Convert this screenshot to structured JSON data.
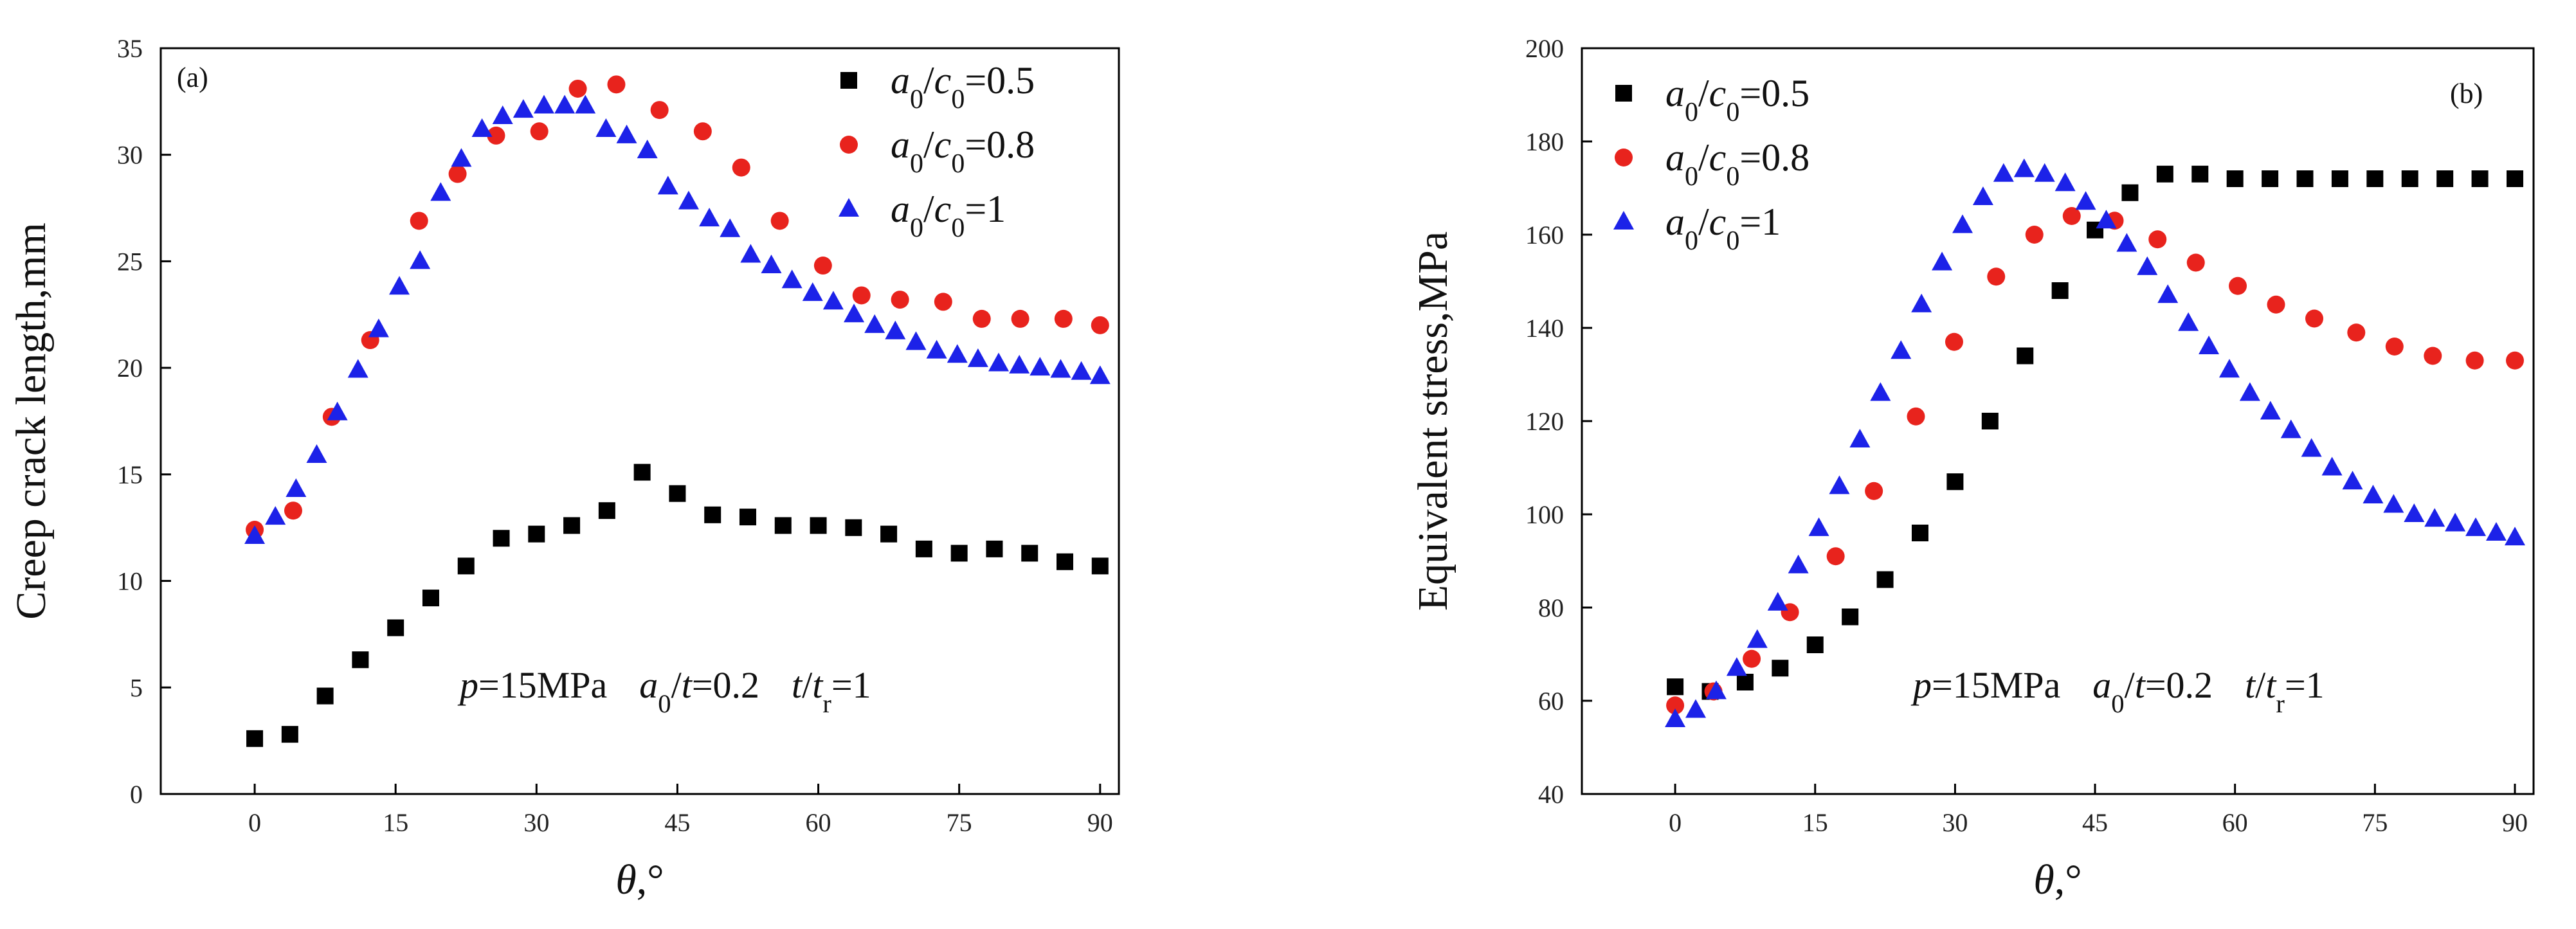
{
  "chart_data": [
    {
      "type": "scatter",
      "panel_label": "(a)",
      "xlabel_symbol": "θ",
      "xlabel_unit": ",°",
      "ylabel": "Creep crack length,mm",
      "xlim": [
        -10,
        92
      ],
      "ylim": [
        0,
        35
      ],
      "xticks": [
        "0",
        "15",
        "30",
        "45",
        "60",
        "75",
        "90"
      ],
      "yticks": [
        "0",
        "5",
        "10",
        "15",
        "20",
        "25",
        "30",
        "35"
      ],
      "legend_position": "top-right",
      "annotation": {
        "p": "p",
        "p_rest": "=15MPa",
        "a": "a",
        "a_sub": "0",
        "a_rest": "/",
        "t1": "t",
        "t1_rest": "=0.2",
        "t2": "t",
        "t2_mid": "/",
        "t3": "t",
        "t3_sub": "r",
        "t3_rest": "=1"
      },
      "series": [
        {
          "name": "a0/c0=0.5",
          "label": {
            "a": "a",
            "sub1": "0",
            "slash": "/",
            "c": "c",
            "sub2": "0",
            "val": "=0.5"
          },
          "marker": "square",
          "color": "#000000",
          "x": [
            0,
            3.75,
            7.5,
            11.25,
            15,
            18.75,
            22.5,
            26.25,
            30,
            33.75,
            37.5,
            41.25,
            45,
            48.75,
            52.5,
            56.25,
            60,
            63.75,
            67.5,
            71.25,
            75,
            78.75,
            82.5,
            86.25,
            90
          ],
          "y": [
            2.6,
            2.8,
            4.6,
            6.3,
            7.8,
            9.2,
            10.7,
            12.0,
            12.2,
            12.6,
            13.3,
            15.1,
            14.1,
            13.1,
            13.0,
            12.6,
            12.6,
            12.5,
            12.2,
            11.5,
            11.3,
            11.5,
            11.3,
            10.9,
            10.7
          ]
        },
        {
          "name": "a0/c0=0.8",
          "label": {
            "a": "a",
            "sub1": "0",
            "slash": "/",
            "c": "c",
            "sub2": "0",
            "val": "=0.8"
          },
          "marker": "circle",
          "color": "#e8231d",
          "x": [
            0,
            4.1,
            8.2,
            12.3,
            17.5,
            21.6,
            25.7,
            30.3,
            34.4,
            38.5,
            43.1,
            47.7,
            51.8,
            55.9,
            60.5,
            64.6,
            68.7,
            73.3,
            77.4,
            81.5,
            86.1,
            90
          ],
          "y": [
            12.4,
            13.3,
            17.7,
            21.3,
            26.9,
            29.1,
            30.9,
            31.1,
            33.1,
            33.3,
            32.1,
            31.1,
            29.4,
            26.9,
            24.8,
            23.4,
            23.2,
            23.1,
            22.3,
            22.3,
            22.3,
            22.0
          ]
        },
        {
          "name": "a0/c0=1",
          "label": {
            "a": "a",
            "sub1": "0",
            "slash": "/",
            "c": "c",
            "sub2": "0",
            "val": "=1"
          },
          "marker": "triangle",
          "color": "#1c22e8",
          "x": [
            0,
            2.2,
            4.4,
            6.6,
            8.8,
            11,
            13.2,
            15.4,
            17.6,
            19.8,
            22,
            24.2,
            26.4,
            28.6,
            30.8,
            33,
            35.2,
            37.4,
            39.6,
            41.8,
            44,
            46.2,
            48.4,
            50.6,
            52.8,
            55,
            57.2,
            59.4,
            61.6,
            63.8,
            66,
            68.2,
            70.4,
            72.6,
            74.8,
            77,
            79.2,
            81.4,
            83.6,
            85.8,
            88,
            90
          ],
          "y": [
            12.1,
            13.0,
            14.3,
            15.9,
            17.9,
            19.9,
            21.8,
            23.8,
            25.0,
            28.2,
            29.8,
            31.2,
            31.8,
            32.1,
            32.3,
            32.3,
            32.3,
            31.2,
            30.9,
            30.2,
            28.5,
            27.8,
            27.0,
            26.5,
            25.3,
            24.8,
            24.1,
            23.5,
            23.1,
            22.5,
            22.0,
            21.7,
            21.2,
            20.8,
            20.6,
            20.4,
            20.2,
            20.1,
            20.0,
            19.9,
            19.8,
            19.6
          ]
        }
      ]
    },
    {
      "type": "scatter",
      "panel_label": "(b)",
      "xlabel_symbol": "θ",
      "xlabel_unit": ",°",
      "ylabel": "Equivalent  stress,MPa",
      "xlim": [
        -10,
        92
      ],
      "ylim": [
        40,
        200
      ],
      "xticks": [
        "0",
        "15",
        "30",
        "45",
        "60",
        "75",
        "90"
      ],
      "yticks": [
        "40",
        "60",
        "80",
        "100",
        "120",
        "140",
        "160",
        "180",
        "200"
      ],
      "legend_position": "top-left",
      "annotation": {
        "p": "p",
        "p_rest": "=15MPa",
        "a": "a",
        "a_sub": "0",
        "a_rest": "/",
        "t1": "t",
        "t1_rest": "=0.2",
        "t2": "t",
        "t2_mid": "/",
        "t3": "t",
        "t3_sub": "r",
        "t3_rest": "=1"
      },
      "series": [
        {
          "name": "a0/c0=0.5",
          "label": {
            "a": "a",
            "sub1": "0",
            "slash": "/",
            "c": "c",
            "sub2": "0",
            "val": "=0.5"
          },
          "marker": "square",
          "color": "#000000",
          "x": [
            0,
            3.75,
            7.5,
            11.25,
            15,
            18.75,
            22.5,
            26.25,
            30,
            33.75,
            37.5,
            41.25,
            45,
            48.75,
            52.5,
            56.25,
            60,
            63.75,
            67.5,
            71.25,
            75,
            78.75,
            82.5,
            86.25,
            90
          ],
          "y": [
            63,
            62,
            64,
            67,
            72,
            78,
            86,
            96,
            107,
            120,
            134,
            148,
            161,
            169,
            173,
            173,
            172,
            172,
            172,
            172,
            172,
            172,
            172,
            172,
            172
          ]
        },
        {
          "name": "a0/c0=0.8",
          "label": {
            "a": "a",
            "sub1": "0",
            "slash": "/",
            "c": "c",
            "sub2": "0",
            "val": "=0.8"
          },
          "marker": "circle",
          "color": "#e8231d",
          "x": [
            0,
            4.1,
            8.2,
            12.3,
            17.2,
            21.3,
            25.8,
            29.9,
            34.4,
            38.5,
            42.5,
            47.1,
            51.7,
            55.8,
            60.3,
            64.4,
            68.5,
            73,
            77.1,
            81.2,
            85.7,
            90
          ],
          "y": [
            59,
            62,
            69,
            79,
            91,
            105,
            121,
            137,
            151,
            160,
            164,
            163,
            159,
            154,
            149,
            145,
            142,
            139,
            136,
            134,
            133,
            133
          ]
        },
        {
          "name": "a0/c0=1",
          "label": {
            "a": "a",
            "sub1": "0",
            "slash": "/",
            "c": "c",
            "sub2": "0",
            "val": "=1"
          },
          "marker": "triangle",
          "color": "#1c22e8",
          "x": [
            0,
            2.2,
            4.4,
            6.6,
            8.8,
            11,
            13.2,
            15.4,
            17.6,
            19.8,
            22,
            24.2,
            26.4,
            28.6,
            30.8,
            33,
            35.2,
            37.4,
            39.6,
            41.8,
            44,
            46.2,
            48.4,
            50.6,
            52.8,
            55,
            57.2,
            59.4,
            61.6,
            63.8,
            66,
            68.2,
            70.4,
            72.6,
            74.8,
            77,
            79.2,
            81.4,
            83.6,
            85.8,
            88,
            90
          ],
          "y": [
            56,
            58,
            62,
            67,
            73,
            81,
            89,
            97,
            106,
            116,
            126,
            135,
            145,
            154,
            162,
            168,
            173,
            174,
            173,
            171,
            167,
            163,
            158,
            153,
            147,
            141,
            136,
            131,
            126,
            122,
            118,
            114,
            110,
            107,
            104,
            102,
            100,
            99,
            98,
            97,
            96,
            95
          ]
        }
      ]
    }
  ]
}
